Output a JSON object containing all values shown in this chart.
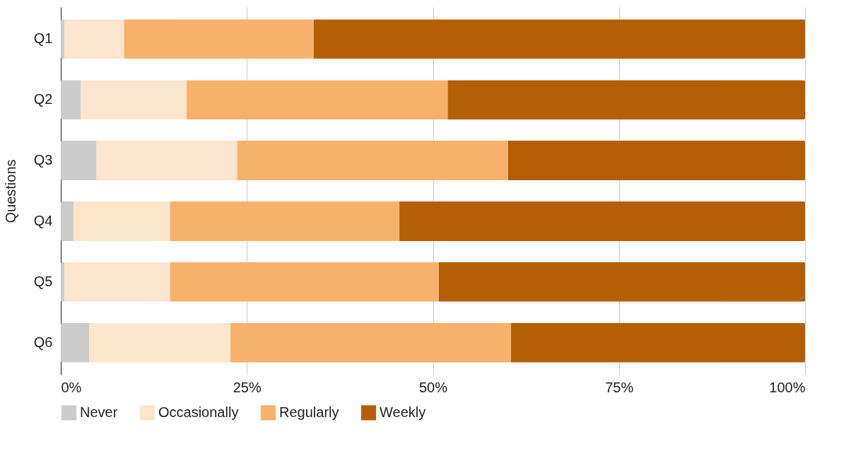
{
  "chart_data": {
    "type": "bar",
    "orientation": "horizontal",
    "stacked": true,
    "ylabel": "Questions",
    "categories": [
      "Q1",
      "Q2",
      "Q3",
      "Q4",
      "Q5",
      "Q6"
    ],
    "series": [
      {
        "name": "Never",
        "color": "#cccccc",
        "values": [
          0.5,
          2.7,
          4.8,
          1.7,
          0.5,
          3.8
        ]
      },
      {
        "name": "Occasionally",
        "color": "#fce5cd",
        "values": [
          8.0,
          14.2,
          18.9,
          13.0,
          14.2,
          19.0
        ]
      },
      {
        "name": "Regularly",
        "color": "#f6b26b",
        "values": [
          25.5,
          35.1,
          36.4,
          30.8,
          36.1,
          37.7
        ]
      },
      {
        "name": "Weekly",
        "color": "#b45f06",
        "values": [
          66.0,
          48.0,
          39.9,
          54.5,
          49.2,
          39.5
        ]
      }
    ],
    "xlim": [
      0,
      100
    ],
    "xticks": [
      {
        "value": 0,
        "label": "0%"
      },
      {
        "value": 25,
        "label": "25%"
      },
      {
        "value": 50,
        "label": "50%"
      },
      {
        "value": 75,
        "label": "75%"
      },
      {
        "value": 100,
        "label": "100%"
      }
    ],
    "grid": "x",
    "legend": "bottom"
  }
}
